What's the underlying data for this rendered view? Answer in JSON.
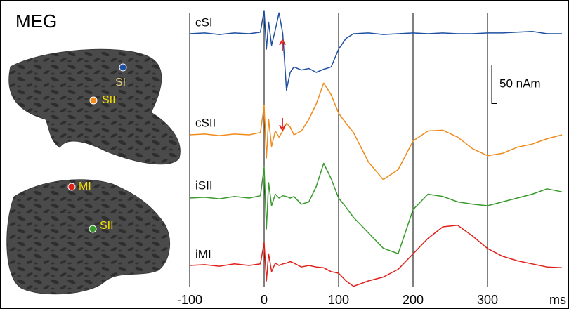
{
  "panel_label": "MEG",
  "brain_labels": [
    "SI",
    "SII",
    "MI",
    "SII"
  ],
  "chart_data": {
    "type": "line",
    "x": [
      -100,
      -80,
      -60,
      -40,
      -20,
      -5,
      0,
      3,
      6,
      10,
      15,
      20,
      25,
      30,
      35,
      40,
      50,
      60,
      70,
      80,
      90,
      100,
      110,
      120,
      140,
      160,
      180,
      200,
      220,
      240,
      260,
      280,
      300,
      320,
      340,
      360,
      380,
      400
    ],
    "series": [
      {
        "name": "cSI",
        "color": "#1f4fa0",
        "values": [
          0,
          1,
          -1,
          1,
          0,
          2,
          30,
          -20,
          15,
          -15,
          5,
          27,
          0,
          -73,
          -50,
          -43,
          -47,
          -45,
          -50,
          -46,
          -43,
          -20,
          -6,
          0,
          1,
          -1,
          0,
          1,
          0,
          1,
          0,
          0,
          1,
          1,
          2,
          3,
          0,
          0
        ]
      },
      {
        "name": "cSII",
        "color": "#f08a1a",
        "values": [
          0,
          1,
          -1,
          1,
          0,
          3,
          38,
          -30,
          20,
          -15,
          5,
          -3,
          5,
          15,
          10,
          0,
          5,
          20,
          40,
          67,
          52,
          28,
          15,
          3,
          -35,
          -58,
          -45,
          -8,
          5,
          6,
          -3,
          -18,
          -27,
          -24,
          -16,
          -12,
          -5,
          0
        ]
      },
      {
        "name": "iSII",
        "color": "#3a9a2e",
        "values": [
          0,
          1,
          -1,
          2,
          0,
          3,
          40,
          -40,
          20,
          -10,
          5,
          0,
          3,
          2,
          0,
          2,
          -8,
          -5,
          15,
          45,
          25,
          0,
          -12,
          -25,
          -45,
          -65,
          -72,
          -15,
          5,
          2,
          -5,
          -8,
          -10,
          -5,
          0,
          5,
          12,
          8
        ]
      },
      {
        "name": "iMI",
        "color": "#e0201a",
        "values": [
          0,
          1,
          -1,
          2,
          0,
          2,
          30,
          -20,
          15,
          -8,
          3,
          0,
          2,
          3,
          5,
          3,
          -2,
          0,
          -2,
          -3,
          -8,
          -10,
          -20,
          -27,
          -20,
          -15,
          -5,
          15,
          35,
          50,
          52,
          38,
          22,
          12,
          6,
          2,
          -2,
          -3
        ]
      }
    ],
    "xlim": [
      -100,
      400
    ],
    "xticks": [
      -100,
      0,
      100,
      200,
      300
    ],
    "x_label": "ms",
    "grid": true,
    "scale_bar": {
      "value": 50,
      "label": "50 nAm"
    }
  }
}
